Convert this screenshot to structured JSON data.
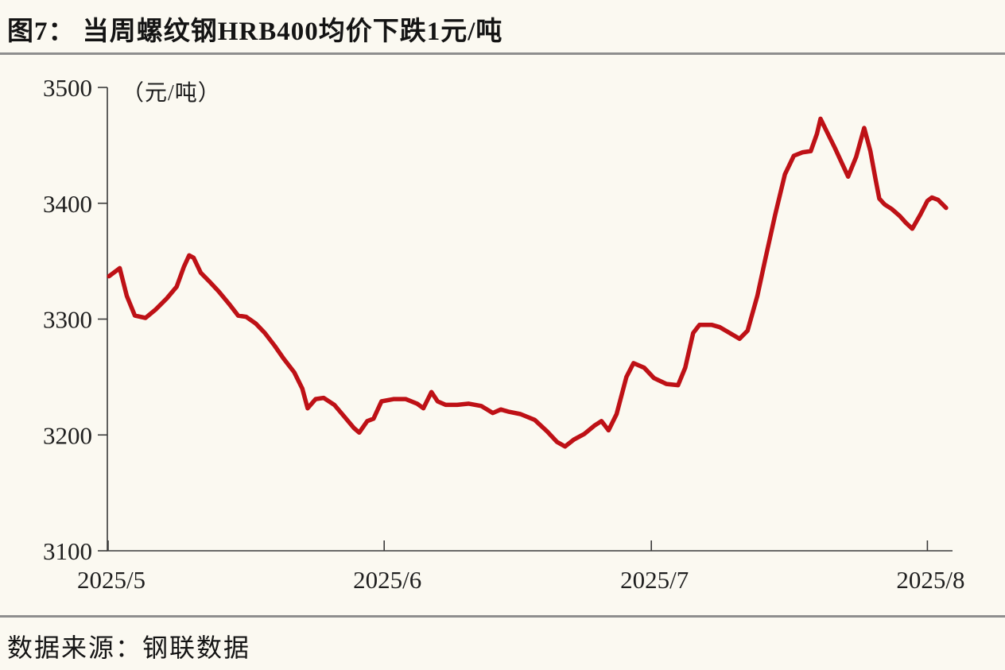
{
  "header": {
    "title": "图7： 当周螺纹钢HRB400均价下跌1元/吨"
  },
  "footer": {
    "source_label": "数据来源：钢联数据"
  },
  "colors": {
    "line_red": "#BE1116",
    "axis": "#3A3A3A",
    "label_text": "#1E1E1E",
    "separator_gray": "#8E8E8E",
    "background": "#FBF9F1"
  },
  "chart_data": {
    "type": "line",
    "title": "当周螺纹钢HRB400均价下跌1元/吨",
    "unit_label": "（元/吨）",
    "xlabel": "",
    "ylabel": "元/吨",
    "grid": false,
    "legend_position": "none",
    "ylim": [
      3100,
      3500
    ],
    "y_ticks": [
      3100,
      3200,
      3300,
      3400,
      3500
    ],
    "x_domain_days": [
      0,
      94.8
    ],
    "x_ticks": [
      {
        "label": "2025/5",
        "day": 0
      },
      {
        "label": "2025/6",
        "day": 31
      },
      {
        "label": "2025/7",
        "day": 61
      },
      {
        "label": "2025/8",
        "day": 92
      }
    ],
    "series": [
      {
        "name": "螺纹钢HRB400均价",
        "color": "#BE1116",
        "points": [
          [
            0.1,
            3337
          ],
          [
            1.3,
            3344
          ],
          [
            2.1,
            3320
          ],
          [
            3.0,
            3303
          ],
          [
            4.2,
            3301
          ],
          [
            5.3,
            3308
          ],
          [
            6.6,
            3318
          ],
          [
            7.7,
            3328
          ],
          [
            8.5,
            3345
          ],
          [
            9.1,
            3355
          ],
          [
            9.6,
            3353
          ],
          [
            10.4,
            3340
          ],
          [
            11.3,
            3333
          ],
          [
            12.4,
            3324
          ],
          [
            13.6,
            3313
          ],
          [
            14.6,
            3303
          ],
          [
            15.5,
            3302
          ],
          [
            16.6,
            3296
          ],
          [
            17.6,
            3288
          ],
          [
            18.7,
            3277
          ],
          [
            19.7,
            3266
          ],
          [
            20.9,
            3254
          ],
          [
            21.8,
            3240
          ],
          [
            22.4,
            3223
          ],
          [
            23.3,
            3231
          ],
          [
            24.2,
            3232
          ],
          [
            25.4,
            3226
          ],
          [
            26.5,
            3216
          ],
          [
            27.6,
            3206
          ],
          [
            28.2,
            3202
          ],
          [
            29.1,
            3212
          ],
          [
            29.8,
            3214
          ],
          [
            30.7,
            3229
          ],
          [
            32.1,
            3231
          ],
          [
            33.4,
            3231
          ],
          [
            34.7,
            3227
          ],
          [
            35.4,
            3223
          ],
          [
            36.3,
            3237
          ],
          [
            37.0,
            3229
          ],
          [
            37.9,
            3226
          ],
          [
            39.2,
            3226
          ],
          [
            40.5,
            3227
          ],
          [
            41.9,
            3225
          ],
          [
            43.2,
            3219
          ],
          [
            44.1,
            3222
          ],
          [
            45.0,
            3220
          ],
          [
            46.3,
            3218
          ],
          [
            47.9,
            3213
          ],
          [
            49.3,
            3203
          ],
          [
            50.4,
            3194
          ],
          [
            51.3,
            3190
          ],
          [
            52.3,
            3196
          ],
          [
            53.5,
            3201
          ],
          [
            54.6,
            3208
          ],
          [
            55.4,
            3212
          ],
          [
            56.2,
            3204
          ],
          [
            57.1,
            3218
          ],
          [
            58.2,
            3250
          ],
          [
            59.0,
            3262
          ],
          [
            60.2,
            3258
          ],
          [
            61.3,
            3249
          ],
          [
            62.7,
            3244
          ],
          [
            64.0,
            3243
          ],
          [
            64.8,
            3258
          ],
          [
            65.7,
            3288
          ],
          [
            66.4,
            3295
          ],
          [
            67.8,
            3295
          ],
          [
            68.7,
            3293
          ],
          [
            69.8,
            3288
          ],
          [
            70.9,
            3283
          ],
          [
            71.8,
            3290
          ],
          [
            72.9,
            3320
          ],
          [
            73.8,
            3352
          ],
          [
            74.9,
            3390
          ],
          [
            76.0,
            3425
          ],
          [
            77.0,
            3441
          ],
          [
            78.0,
            3444
          ],
          [
            78.9,
            3445
          ],
          [
            79.6,
            3460
          ],
          [
            80.0,
            3473
          ],
          [
            80.7,
            3462
          ],
          [
            81.6,
            3448
          ],
          [
            82.5,
            3433
          ],
          [
            83.1,
            3423
          ],
          [
            84.0,
            3440
          ],
          [
            84.9,
            3465
          ],
          [
            85.6,
            3445
          ],
          [
            86.2,
            3420
          ],
          [
            86.6,
            3404
          ],
          [
            87.2,
            3399
          ],
          [
            88.0,
            3395
          ],
          [
            88.9,
            3389
          ],
          [
            89.6,
            3383
          ],
          [
            90.3,
            3378
          ],
          [
            91.2,
            3390
          ],
          [
            92.0,
            3402
          ],
          [
            92.5,
            3405
          ],
          [
            93.2,
            3403
          ],
          [
            94.1,
            3396
          ]
        ]
      }
    ]
  }
}
